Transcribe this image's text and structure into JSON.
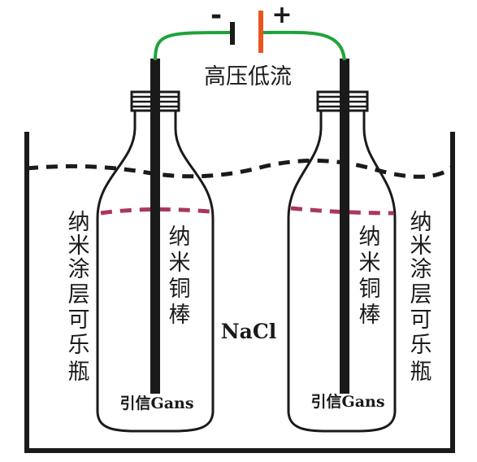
{
  "battery": {
    "negative_sign": "-",
    "positive_sign": "+"
  },
  "power_label": "高压低流",
  "left_bottle": {
    "outside_label": [
      "纳",
      "米",
      "涂",
      "层",
      "可",
      "乐",
      "瓶"
    ],
    "rod_label": [
      "纳",
      "米",
      "铜",
      "棒"
    ],
    "bottom_label": "引信Gans"
  },
  "right_bottle": {
    "rod_label": [
      "纳",
      "米",
      "铜",
      "棒"
    ],
    "outside_label": [
      "纳",
      "米",
      "涂",
      "层",
      "可",
      "乐",
      "瓶"
    ],
    "bottom_label": "引信Gans"
  },
  "solution_label": "NaCl",
  "colors": {
    "wire": "#1fa33a",
    "battery_positive": "#e8561e",
    "inner_level": "#a8385a",
    "outline": "#1a1a1a"
  }
}
